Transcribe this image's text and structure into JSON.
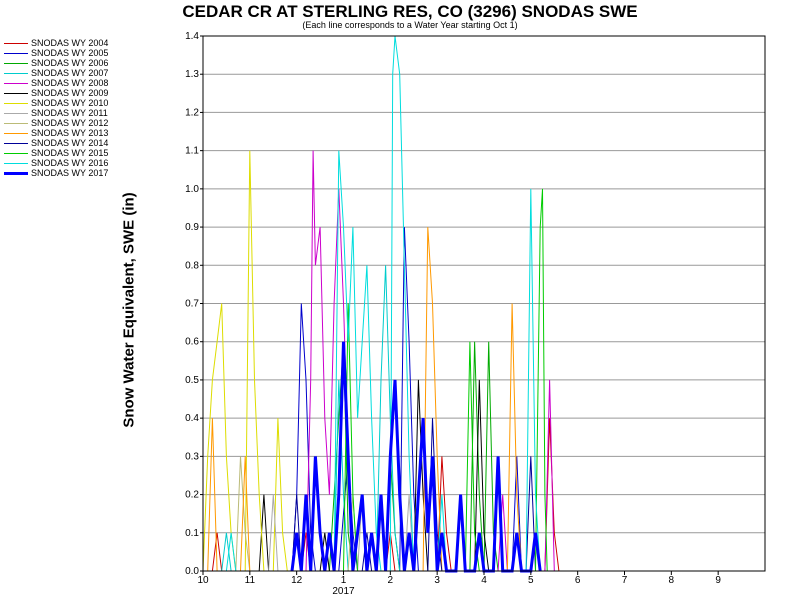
{
  "chart_data": {
    "type": "line",
    "title": "CEDAR CR AT STERLING RES, CO (3296) SNODAS SWE",
    "subtitle": "(Each line corresponds to a Water Year starting Oct 1)",
    "ylabel": "Snow Water Equivalent, SWE (in)",
    "xlabel": "",
    "x_unit": "month (10 = Oct 1, 13 = Jan 1 2017)",
    "x_tick_labels": [
      "10",
      "11",
      "12",
      "1",
      "2",
      "3",
      "4",
      "5",
      "6",
      "7",
      "8",
      "9"
    ],
    "year_label": "2017",
    "y_tick_labels": [
      "0.0",
      "0.1",
      "0.2",
      "0.3",
      "0.4",
      "0.5",
      "0.6",
      "0.7",
      "0.8",
      "0.9",
      "1.0",
      "1.1",
      "1.2",
      "1.3",
      "1.4"
    ],
    "xlim": [
      10,
      22
    ],
    "ylim": [
      0,
      1.4
    ],
    "grid": "horizontal",
    "legend_position": "left",
    "series": [
      {
        "name": "SNODAS WY 2004",
        "color": "#cc0000",
        "width": 1,
        "points": [
          [
            10.2,
            0
          ],
          [
            10.3,
            0.1
          ],
          [
            10.4,
            0
          ],
          [
            12.1,
            0
          ],
          [
            12.2,
            0.1
          ],
          [
            12.3,
            0
          ],
          [
            13.9,
            0
          ],
          [
            14.0,
            0.1
          ],
          [
            14.1,
            0
          ],
          [
            15.0,
            0
          ],
          [
            15.1,
            0.3
          ],
          [
            15.2,
            0.1
          ],
          [
            15.3,
            0
          ],
          [
            17.3,
            0
          ],
          [
            17.4,
            0.4
          ],
          [
            17.5,
            0.1
          ],
          [
            17.6,
            0
          ]
        ]
      },
      {
        "name": "SNODAS WY 2005",
        "color": "#0000cc",
        "width": 1,
        "points": [
          [
            11.9,
            0
          ],
          [
            12.0,
            0.2
          ],
          [
            12.1,
            0.7
          ],
          [
            12.2,
            0.5
          ],
          [
            12.3,
            0.1
          ],
          [
            12.4,
            0
          ],
          [
            12.9,
            0
          ],
          [
            13.1,
            0.3
          ],
          [
            13.2,
            0.1
          ],
          [
            13.3,
            0
          ],
          [
            14.2,
            0
          ],
          [
            14.3,
            0.9
          ],
          [
            14.4,
            0.6
          ],
          [
            14.5,
            0.2
          ],
          [
            14.6,
            0
          ],
          [
            16.6,
            0
          ],
          [
            16.7,
            0.3
          ],
          [
            16.8,
            0
          ]
        ]
      },
      {
        "name": "SNODAS WY 2006",
        "color": "#00aa00",
        "width": 1,
        "points": [
          [
            12.7,
            0
          ],
          [
            12.8,
            0.2
          ],
          [
            12.9,
            0.4
          ],
          [
            13.0,
            0.6
          ],
          [
            13.1,
            0.1
          ],
          [
            13.2,
            0
          ],
          [
            13.9,
            0
          ],
          [
            14.0,
            0.3
          ],
          [
            14.1,
            0.1
          ],
          [
            14.2,
            0
          ],
          [
            15.7,
            0
          ],
          [
            15.8,
            0.6
          ],
          [
            15.9,
            0.2
          ],
          [
            16.0,
            0
          ],
          [
            16.1,
            0.6
          ],
          [
            16.2,
            0.1
          ],
          [
            16.3,
            0
          ]
        ]
      },
      {
        "name": "SNODAS WY 2007",
        "color": "#00cccc",
        "width": 1,
        "points": [
          [
            10.4,
            0
          ],
          [
            10.5,
            0.1
          ],
          [
            10.6,
            0
          ],
          [
            12.8,
            0
          ],
          [
            12.9,
            0.5
          ],
          [
            13.0,
            0.2
          ],
          [
            13.1,
            0
          ],
          [
            13.7,
            0
          ],
          [
            13.8,
            0.5
          ],
          [
            13.9,
            0.8
          ],
          [
            14.0,
            0.4
          ],
          [
            14.1,
            0.1
          ],
          [
            14.2,
            0
          ]
        ]
      },
      {
        "name": "SNODAS WY 2008",
        "color": "#cc00cc",
        "width": 1,
        "points": [
          [
            12.2,
            0
          ],
          [
            12.3,
            0.5
          ],
          [
            12.35,
            1.1
          ],
          [
            12.4,
            0.8
          ],
          [
            12.5,
            0.9
          ],
          [
            12.6,
            0.4
          ],
          [
            12.7,
            0.2
          ],
          [
            12.8,
            0.7
          ],
          [
            12.9,
            1.0
          ],
          [
            13.0,
            0.7
          ],
          [
            13.1,
            0.3
          ],
          [
            13.2,
            0
          ],
          [
            16.3,
            0
          ],
          [
            16.4,
            0.2
          ],
          [
            16.5,
            0
          ],
          [
            17.3,
            0
          ],
          [
            17.4,
            0.5
          ],
          [
            17.5,
            0
          ]
        ]
      },
      {
        "name": "SNODAS WY 2009",
        "color": "#000000",
        "width": 1,
        "points": [
          [
            11.2,
            0
          ],
          [
            11.3,
            0.2
          ],
          [
            11.4,
            0
          ],
          [
            12.5,
            0
          ],
          [
            12.6,
            0.1
          ],
          [
            12.7,
            0
          ],
          [
            14.5,
            0
          ],
          [
            14.6,
            0.5
          ],
          [
            14.7,
            0.2
          ],
          [
            14.8,
            0
          ],
          [
            15.8,
            0
          ],
          [
            15.9,
            0.5
          ],
          [
            16.0,
            0.1
          ],
          [
            16.1,
            0
          ]
        ]
      },
      {
        "name": "SNODAS WY 2010",
        "color": "#dddd00",
        "width": 1,
        "points": [
          [
            10.0,
            0
          ],
          [
            10.1,
            0.3
          ],
          [
            10.2,
            0.5
          ],
          [
            10.3,
            0.6
          ],
          [
            10.4,
            0.7
          ],
          [
            10.5,
            0.3
          ],
          [
            10.6,
            0.1
          ],
          [
            10.7,
            0
          ],
          [
            10.9,
            0
          ],
          [
            11.0,
            1.1
          ],
          [
            11.1,
            0.5
          ],
          [
            11.2,
            0.2
          ],
          [
            11.3,
            0
          ],
          [
            11.5,
            0
          ],
          [
            11.6,
            0.4
          ],
          [
            11.7,
            0.1
          ],
          [
            11.8,
            0
          ]
        ]
      },
      {
        "name": "SNODAS WY 2011",
        "color": "#aaaaaa",
        "width": 1,
        "points": [
          [
            11.4,
            0
          ],
          [
            11.5,
            0.2
          ],
          [
            11.6,
            0
          ],
          [
            13.3,
            0
          ],
          [
            13.4,
            0.2
          ],
          [
            13.5,
            0
          ],
          [
            14.3,
            0
          ],
          [
            14.4,
            0.2
          ],
          [
            14.5,
            0
          ]
        ]
      },
      {
        "name": "SNODAS WY 2012",
        "color": "#bbbb77",
        "width": 1,
        "points": [
          [
            10.7,
            0
          ],
          [
            10.8,
            0.3
          ],
          [
            10.9,
            0.1
          ],
          [
            11.0,
            0
          ],
          [
            13.1,
            0
          ],
          [
            13.2,
            0.2
          ],
          [
            13.3,
            0
          ]
        ]
      },
      {
        "name": "SNODAS WY 2013",
        "color": "#ff9900",
        "width": 1,
        "points": [
          [
            10.1,
            0
          ],
          [
            10.2,
            0.4
          ],
          [
            10.3,
            0
          ],
          [
            10.8,
            0
          ],
          [
            10.9,
            0.3
          ],
          [
            11.0,
            0
          ],
          [
            14.7,
            0
          ],
          [
            14.8,
            0.9
          ],
          [
            14.9,
            0.7
          ],
          [
            15.0,
            0.3
          ],
          [
            15.1,
            0
          ],
          [
            16.5,
            0
          ],
          [
            16.6,
            0.7
          ],
          [
            16.7,
            0.2
          ],
          [
            16.8,
            0
          ]
        ]
      },
      {
        "name": "SNODAS WY 2014",
        "color": "#000099",
        "width": 1,
        "points": [
          [
            11.9,
            0
          ],
          [
            12.0,
            0.2
          ],
          [
            12.1,
            0
          ],
          [
            13.4,
            0
          ],
          [
            13.5,
            0.1
          ],
          [
            13.6,
            0
          ],
          [
            14.8,
            0
          ],
          [
            14.9,
            0.4
          ],
          [
            15.0,
            0.1
          ],
          [
            15.1,
            0
          ],
          [
            16.9,
            0
          ],
          [
            17.0,
            0.3
          ],
          [
            17.1,
            0
          ]
        ]
      },
      {
        "name": "SNODAS WY 2015",
        "color": "#00cc00",
        "width": 1,
        "points": [
          [
            13.0,
            0
          ],
          [
            13.1,
            0.7
          ],
          [
            13.2,
            0.2
          ],
          [
            13.3,
            0
          ],
          [
            15.6,
            0
          ],
          [
            15.7,
            0.6
          ],
          [
            15.8,
            0.1
          ],
          [
            15.9,
            0
          ],
          [
            17.1,
            0
          ],
          [
            17.2,
            0.9
          ],
          [
            17.25,
            1.0
          ],
          [
            17.3,
            0.2
          ],
          [
            17.35,
            0
          ]
        ]
      },
      {
        "name": "SNODAS WY 2016",
        "color": "#00dddd",
        "width": 1,
        "points": [
          [
            10.5,
            0
          ],
          [
            10.6,
            0.1
          ],
          [
            10.7,
            0
          ],
          [
            12.8,
            0
          ],
          [
            12.9,
            1.1
          ],
          [
            13.0,
            0.9
          ],
          [
            13.1,
            0.6
          ],
          [
            13.2,
            0.9
          ],
          [
            13.3,
            0.4
          ],
          [
            13.4,
            0.6
          ],
          [
            13.5,
            0.8
          ],
          [
            13.6,
            0.4
          ],
          [
            13.7,
            0.1
          ],
          [
            13.8,
            0
          ],
          [
            14.0,
            0
          ],
          [
            14.05,
            1.3
          ],
          [
            14.1,
            1.4
          ],
          [
            14.2,
            1.3
          ],
          [
            14.3,
            0.8
          ],
          [
            14.4,
            0.3
          ],
          [
            14.5,
            0
          ],
          [
            15.0,
            0
          ],
          [
            15.1,
            0.2
          ],
          [
            15.2,
            0
          ],
          [
            16.9,
            0
          ],
          [
            17.0,
            1.0
          ],
          [
            17.1,
            0.2
          ],
          [
            17.2,
            0
          ]
        ]
      },
      {
        "name": "SNODAS WY 2017",
        "color": "#0000ff",
        "width": 3,
        "points": [
          [
            11.9,
            0
          ],
          [
            12.0,
            0.1
          ],
          [
            12.1,
            0
          ],
          [
            12.2,
            0.2
          ],
          [
            12.3,
            0
          ],
          [
            12.4,
            0.3
          ],
          [
            12.5,
            0.1
          ],
          [
            12.6,
            0
          ],
          [
            12.7,
            0.1
          ],
          [
            12.8,
            0
          ],
          [
            12.9,
            0.2
          ],
          [
            13.0,
            0.6
          ],
          [
            13.1,
            0.3
          ],
          [
            13.2,
            0
          ],
          [
            13.3,
            0.1
          ],
          [
            13.4,
            0.2
          ],
          [
            13.5,
            0
          ],
          [
            13.6,
            0.1
          ],
          [
            13.7,
            0
          ],
          [
            13.8,
            0.2
          ],
          [
            13.9,
            0
          ],
          [
            14.0,
            0.3
          ],
          [
            14.1,
            0.5
          ],
          [
            14.2,
            0.2
          ],
          [
            14.3,
            0
          ],
          [
            14.4,
            0.1
          ],
          [
            14.5,
            0
          ],
          [
            14.6,
            0.2
          ],
          [
            14.7,
            0.4
          ],
          [
            14.8,
            0.1
          ],
          [
            14.9,
            0.3
          ],
          [
            15.0,
            0
          ],
          [
            15.1,
            0.1
          ],
          [
            15.2,
            0
          ],
          [
            15.4,
            0
          ],
          [
            15.5,
            0.2
          ],
          [
            15.6,
            0
          ],
          [
            15.8,
            0
          ],
          [
            15.9,
            0.1
          ],
          [
            16.0,
            0
          ],
          [
            16.2,
            0
          ],
          [
            16.3,
            0.3
          ],
          [
            16.4,
            0
          ],
          [
            16.6,
            0
          ],
          [
            16.7,
            0.1
          ],
          [
            16.8,
            0
          ],
          [
            17.0,
            0
          ],
          [
            17.1,
            0.1
          ],
          [
            17.2,
            0
          ]
        ]
      }
    ]
  }
}
